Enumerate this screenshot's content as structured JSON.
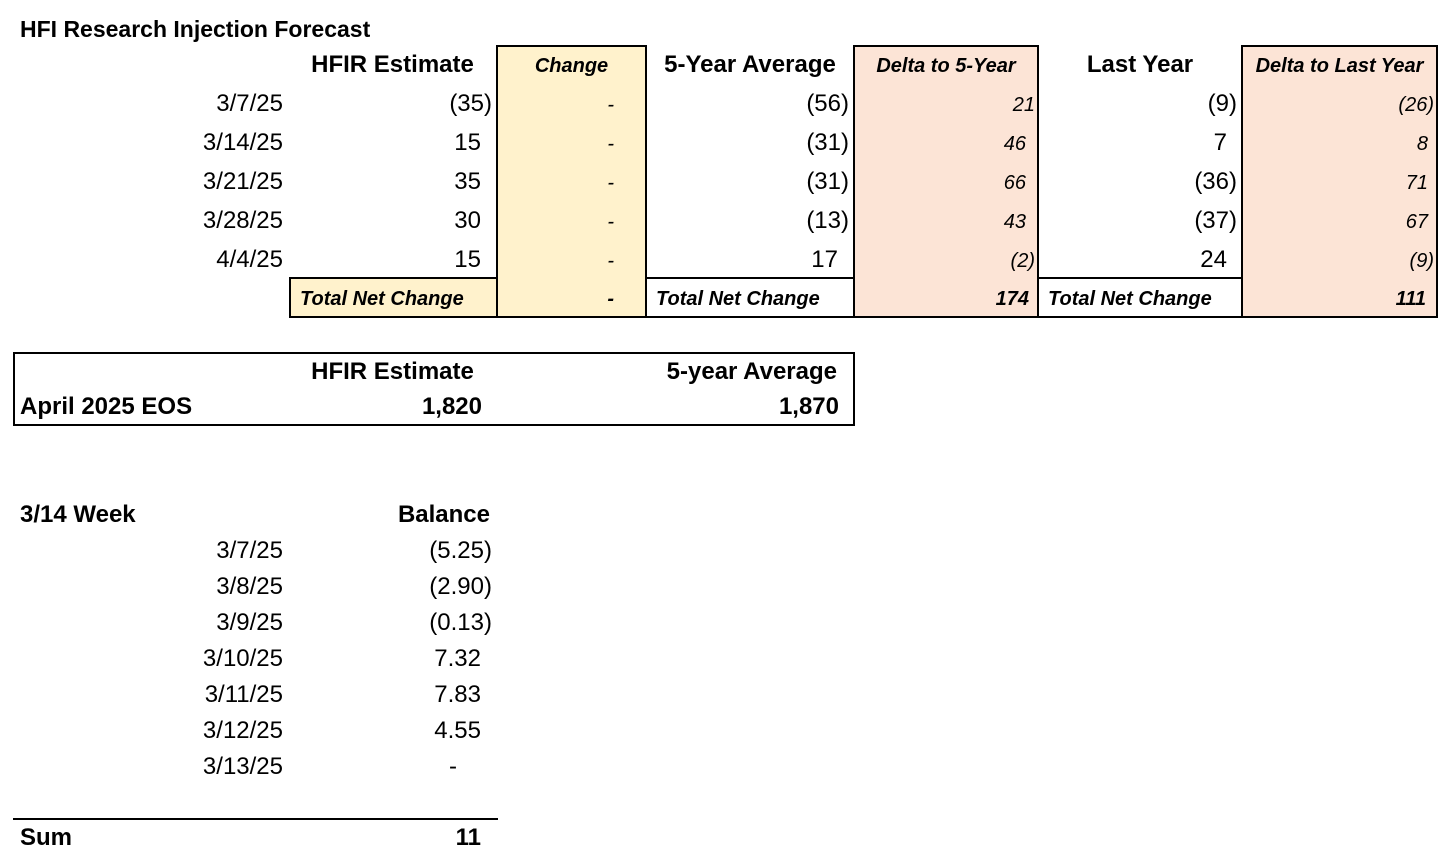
{
  "title": "HFI Research Injection Forecast",
  "forecast": {
    "headers": {
      "hfir": "HFIR Estimate",
      "change": "Change",
      "avg5": "5-Year Average",
      "delta5": "Delta to 5-Year",
      "lastyear": "Last Year",
      "deltaly": "Delta to Last Year"
    },
    "rows": [
      {
        "date": "3/7/25",
        "hfir": "(35)",
        "change": "-",
        "avg5": "(56)",
        "delta5": "21",
        "lastyear": "(9)",
        "deltaly": "(26)"
      },
      {
        "date": "3/14/25",
        "hfir": "15",
        "change": "-",
        "avg5": "(31)",
        "delta5": "46",
        "lastyear": "7",
        "deltaly": "8"
      },
      {
        "date": "3/21/25",
        "hfir": "35",
        "change": "-",
        "avg5": "(31)",
        "delta5": "66",
        "lastyear": "(36)",
        "deltaly": "71"
      },
      {
        "date": "3/28/25",
        "hfir": "30",
        "change": "-",
        "avg5": "(13)",
        "delta5": "43",
        "lastyear": "(37)",
        "deltaly": "67"
      },
      {
        "date": "4/4/25",
        "hfir": "15",
        "change": "-",
        "avg5": "17",
        "delta5": "(2)",
        "lastyear": "24",
        "deltaly": "(9)"
      }
    ],
    "totals": {
      "label1": "Total Net Change",
      "change": "-",
      "label2": "Total Net Change",
      "delta5": "174",
      "label3": "Total Net Change",
      "deltaly": "111"
    }
  },
  "eos": {
    "header_hfir": "HFIR Estimate",
    "header_avg": "5-year Average",
    "label": "April 2025 EOS",
    "hfir": "1,820",
    "avg": "1,870"
  },
  "week": {
    "label": "3/14 Week",
    "header": "Balance",
    "rows": [
      {
        "date": "3/7/25",
        "balance": "(5.25)"
      },
      {
        "date": "3/8/25",
        "balance": "(2.90)"
      },
      {
        "date": "3/9/25",
        "balance": "(0.13)"
      },
      {
        "date": "3/10/25",
        "balance": "7.32"
      },
      {
        "date": "3/11/25",
        "balance": "7.83"
      },
      {
        "date": "3/12/25",
        "balance": "4.55"
      },
      {
        "date": "3/13/25",
        "balance": "-"
      }
    ],
    "sum_label": "Sum",
    "sum": "11"
  }
}
